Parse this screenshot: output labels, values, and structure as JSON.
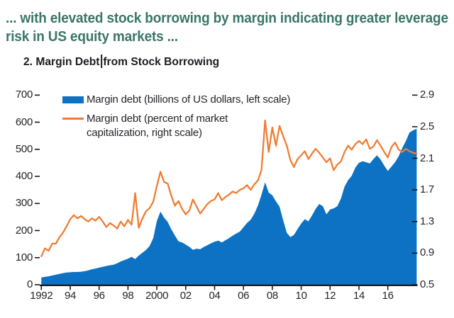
{
  "header": {
    "line1": "... with elevated stock borrowing by margin indicating greater leverage",
    "line2": "risk in US equity markets ..."
  },
  "figure_title": {
    "before_caret": "2. Margin Debt",
    "after_caret": "from Stock Borrowing"
  },
  "colors": {
    "accent_blue": "#0d72c4",
    "accent_orange": "#f07d32",
    "header_teal": "#3a7668",
    "axis_black": "#1a1a1a"
  },
  "chart_data": {
    "type": "area+line",
    "title": "2. Margin Debt from Stock Borrowing",
    "grid": false,
    "legend_position": "top-left",
    "x": [
      1992,
      1992.25,
      1992.5,
      1992.75,
      1993,
      1993.25,
      1993.5,
      1993.75,
      1994,
      1994.25,
      1994.5,
      1994.75,
      1995,
      1995.25,
      1995.5,
      1995.75,
      1996,
      1996.25,
      1996.5,
      1996.75,
      1997,
      1997.25,
      1997.5,
      1997.75,
      1998,
      1998.25,
      1998.5,
      1998.75,
      1999,
      1999.25,
      1999.5,
      1999.75,
      2000,
      2000.25,
      2000.5,
      2000.75,
      2001,
      2001.25,
      2001.5,
      2001.75,
      2002,
      2002.25,
      2002.5,
      2002.75,
      2003,
      2003.25,
      2003.5,
      2003.75,
      2004,
      2004.25,
      2004.5,
      2004.75,
      2005,
      2005.25,
      2005.5,
      2005.75,
      2006,
      2006.25,
      2006.5,
      2006.75,
      2007,
      2007.25,
      2007.5,
      2007.75,
      2008,
      2008.25,
      2008.5,
      2008.75,
      2009,
      2009.25,
      2009.5,
      2009.75,
      2010,
      2010.25,
      2010.5,
      2010.75,
      2011,
      2011.25,
      2011.5,
      2011.75,
      2012,
      2012.25,
      2012.5,
      2012.75,
      2013,
      2013.25,
      2013.5,
      2013.75,
      2014,
      2014.25,
      2014.5,
      2014.75,
      2015,
      2015.25,
      2015.5,
      2015.75,
      2016,
      2016.25,
      2016.5,
      2016.75,
      2017,
      2017.25,
      2017.5,
      2017.75,
      2018
    ],
    "series": [
      {
        "name": "Margin debt (billions of US dollars, left scale)",
        "type": "area",
        "axis": "left",
        "color": "#0d72c4",
        "values": [
          27,
          29,
          31,
          34,
          37,
          40,
          43,
          45,
          46,
          47,
          47,
          48,
          50,
          53,
          57,
          60,
          63,
          66,
          69,
          72,
          74,
          79,
          86,
          91,
          96,
          103,
          95,
          108,
          118,
          128,
          143,
          172,
          235,
          270,
          248,
          232,
          205,
          182,
          160,
          156,
          148,
          140,
          129,
          133,
          131,
          139,
          146,
          153,
          159,
          163,
          156,
          164,
          172,
          181,
          189,
          196,
          212,
          228,
          240,
          262,
          292,
          332,
          378,
          340,
          330,
          308,
          288,
          238,
          192,
          176,
          184,
          206,
          226,
          242,
          234,
          256,
          280,
          298,
          290,
          260,
          278,
          282,
          290,
          318,
          362,
          386,
          402,
          432,
          450,
          456,
          452,
          448,
          464,
          478,
          462,
          440,
          420,
          436,
          452,
          474,
          505,
          530,
          562,
          570,
          576
        ]
      },
      {
        "name": "Margin debt (percent of market capitalization, right scale)",
        "type": "line",
        "axis": "right",
        "color": "#f07d32",
        "values": [
          0.86,
          0.96,
          0.93,
          1.02,
          1.02,
          1.1,
          1.16,
          1.24,
          1.33,
          1.38,
          1.34,
          1.37,
          1.33,
          1.3,
          1.34,
          1.31,
          1.36,
          1.3,
          1.23,
          1.28,
          1.25,
          1.21,
          1.3,
          1.24,
          1.32,
          1.26,
          1.66,
          1.22,
          1.34,
          1.43,
          1.47,
          1.55,
          1.75,
          1.93,
          1.8,
          1.78,
          1.63,
          1.5,
          1.56,
          1.46,
          1.39,
          1.44,
          1.58,
          1.49,
          1.4,
          1.46,
          1.52,
          1.56,
          1.58,
          1.66,
          1.57,
          1.61,
          1.64,
          1.68,
          1.66,
          1.7,
          1.72,
          1.76,
          1.7,
          1.77,
          1.82,
          1.95,
          2.58,
          2.18,
          2.49,
          2.26,
          2.51,
          2.38,
          2.26,
          2.08,
          1.99,
          2.09,
          2.14,
          2.19,
          2.09,
          2.16,
          2.22,
          2.17,
          2.11,
          2.05,
          2.1,
          1.95,
          2.02,
          2.06,
          2.18,
          2.26,
          2.21,
          2.28,
          2.32,
          2.28,
          2.34,
          2.22,
          2.25,
          2.33,
          2.26,
          2.18,
          2.11,
          2.24,
          2.3,
          2.21,
          2.18,
          2.22,
          2.19,
          2.17,
          2.16
        ]
      }
    ],
    "left_axis": {
      "range": [
        0,
        700
      ],
      "ticks": [
        0,
        100,
        200,
        300,
        400,
        500,
        600,
        700
      ]
    },
    "right_axis": {
      "range": [
        0.5,
        2.9
      ],
      "ticks": [
        0.5,
        0.9,
        1.3,
        1.7,
        2.1,
        2.5,
        2.9
      ],
      "tick_labels": [
        "0.5",
        "0.9",
        "1.3",
        "1.7",
        "2.1",
        "2.5",
        "2.9"
      ]
    },
    "x_axis": {
      "range": [
        1992,
        2018
      ],
      "tick_years": [
        1992,
        1994,
        1996,
        1998,
        2000,
        2002,
        2004,
        2006,
        2008,
        2010,
        2012,
        2014,
        2016
      ],
      "tick_labels": [
        "1992",
        "94",
        "96",
        "98",
        "2000",
        "02",
        "04",
        "06",
        "08",
        "10",
        "12",
        "14",
        "16"
      ]
    }
  }
}
